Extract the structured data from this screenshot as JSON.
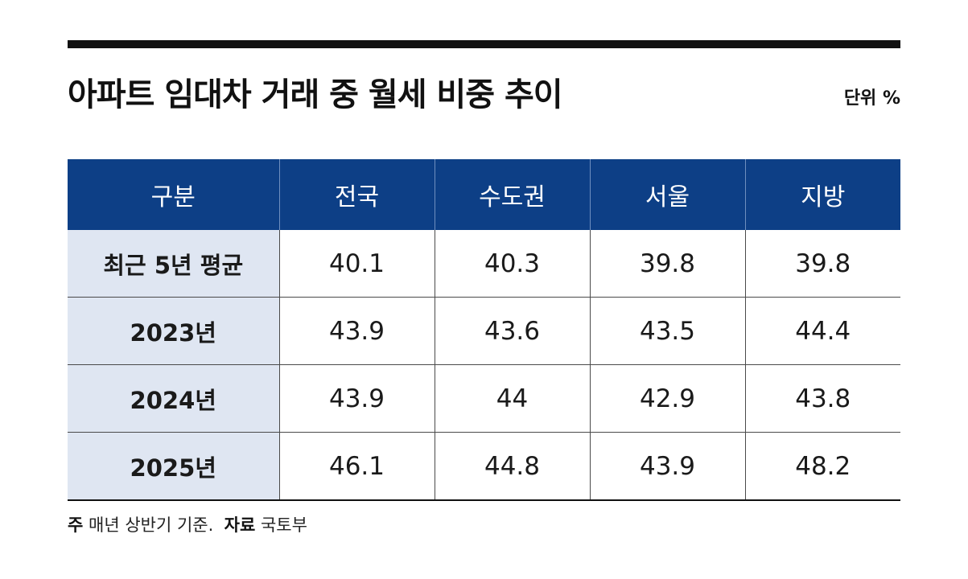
{
  "title": "아파트 임대차 거래 중 월세 비중 추이",
  "unit": "단위 %",
  "footnote": {
    "note_key": "주",
    "note_text": "매년 상반기 기준.",
    "source_key": "자료",
    "source_text": "국토부"
  },
  "chart_data": {
    "type": "table",
    "title": "아파트 임대차 거래 중 월세 비중 추이",
    "unit": "%",
    "columns": [
      "구분",
      "전국",
      "수도권",
      "서울",
      "지방"
    ],
    "rows": [
      {
        "label": "최근 5년 평균",
        "values": [
          "40.1",
          "40.3",
          "39.8",
          "39.8"
        ]
      },
      {
        "label": "2023년",
        "values": [
          "43.9",
          "43.6",
          "43.5",
          "44.4"
        ]
      },
      {
        "label": "2024년",
        "values": [
          "43.9",
          "44",
          "42.9",
          "43.8"
        ]
      },
      {
        "label": "2025년",
        "values": [
          "46.1",
          "44.8",
          "43.9",
          "48.2"
        ]
      }
    ]
  },
  "colors": {
    "header_bg": "#0d3f86",
    "label_bg": "#dfe6f2",
    "rule": "#111111"
  }
}
